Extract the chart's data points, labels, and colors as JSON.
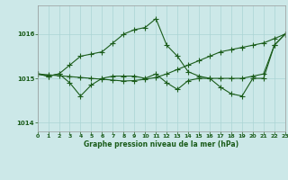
{
  "title": "Graphe pression niveau de la mer (hPa)",
  "bg_color": "#cce8e8",
  "grid_color": "#aad4d4",
  "line_color": "#1a5c1a",
  "xlim": [
    0,
    23
  ],
  "ylim": [
    1013.8,
    1016.65
  ],
  "yticks": [
    1014,
    1015,
    1016
  ],
  "xticks": [
    0,
    1,
    2,
    3,
    4,
    5,
    6,
    7,
    8,
    9,
    10,
    11,
    12,
    13,
    14,
    15,
    16,
    17,
    18,
    19,
    20,
    21,
    22,
    23
  ],
  "line1_x": [
    0,
    1,
    2,
    3,
    4,
    5,
    6,
    7,
    8,
    9,
    10,
    11,
    12,
    13,
    14,
    15,
    16,
    17,
    18,
    19,
    20,
    21,
    22,
    23
  ],
  "line1_y": [
    1015.1,
    1015.05,
    1015.1,
    1015.3,
    1015.5,
    1015.55,
    1015.6,
    1015.8,
    1016.0,
    1016.1,
    1016.15,
    1016.35,
    1015.75,
    1015.5,
    1015.15,
    1015.05,
    1015.0,
    1015.0,
    1015.0,
    1015.0,
    1015.05,
    1015.1,
    1015.75,
    1016.0
  ],
  "line2_x": [
    0,
    1,
    2,
    3,
    4,
    5,
    6,
    7,
    8,
    9,
    10,
    11,
    12,
    13,
    14,
    15,
    16,
    17,
    18,
    19,
    20,
    21,
    22,
    23
  ],
  "line2_y": [
    1015.1,
    1015.08,
    1015.06,
    1015.04,
    1015.02,
    1015.0,
    1014.98,
    1014.96,
    1014.94,
    1014.95,
    1014.98,
    1015.02,
    1015.1,
    1015.2,
    1015.3,
    1015.4,
    1015.5,
    1015.6,
    1015.65,
    1015.7,
    1015.75,
    1015.8,
    1015.9,
    1016.0
  ],
  "line3_x": [
    0,
    1,
    2,
    3,
    4,
    5,
    6,
    7,
    8,
    9,
    10,
    11,
    12,
    13,
    14,
    15,
    16,
    17,
    18,
    19,
    20,
    21,
    22,
    23
  ],
  "line3_y": [
    1015.1,
    1015.05,
    1015.1,
    1014.9,
    1014.6,
    1014.85,
    1015.0,
    1015.05,
    1015.05,
    1015.05,
    1015.0,
    1015.1,
    1014.9,
    1014.75,
    1014.95,
    1015.0,
    1015.0,
    1014.8,
    1014.65,
    1014.6,
    1015.0,
    1015.0,
    1015.75,
    1016.0
  ]
}
